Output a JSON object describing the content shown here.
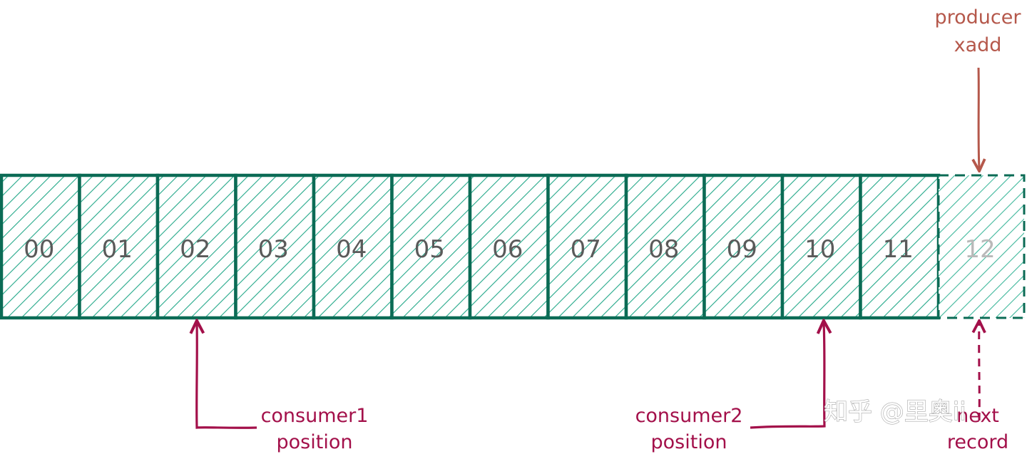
{
  "cells": [
    {
      "label": "00",
      "state": "written"
    },
    {
      "label": "01",
      "state": "written"
    },
    {
      "label": "02",
      "state": "written"
    },
    {
      "label": "03",
      "state": "written"
    },
    {
      "label": "04",
      "state": "written"
    },
    {
      "label": "05",
      "state": "written"
    },
    {
      "label": "06",
      "state": "written"
    },
    {
      "label": "07",
      "state": "written"
    },
    {
      "label": "08",
      "state": "written"
    },
    {
      "label": "09",
      "state": "written"
    },
    {
      "label": "10",
      "state": "written"
    },
    {
      "label": "11",
      "state": "written"
    },
    {
      "label": "12",
      "state": "pending"
    }
  ],
  "producer": {
    "line1": "producer",
    "line2": "xadd"
  },
  "consumer1": {
    "line1": "consumer1",
    "line2": "position"
  },
  "consumer2": {
    "line1": "consumer2",
    "line2": "position"
  },
  "next_record": {
    "line1": "next",
    "line2": "record"
  },
  "watermark": "知乎 @里奥ii",
  "colors": {
    "cell_border": "#0b6b55",
    "hatch": "#23a889",
    "producer_text": "#b5584b",
    "consumer_arrow": "#a3104a"
  }
}
